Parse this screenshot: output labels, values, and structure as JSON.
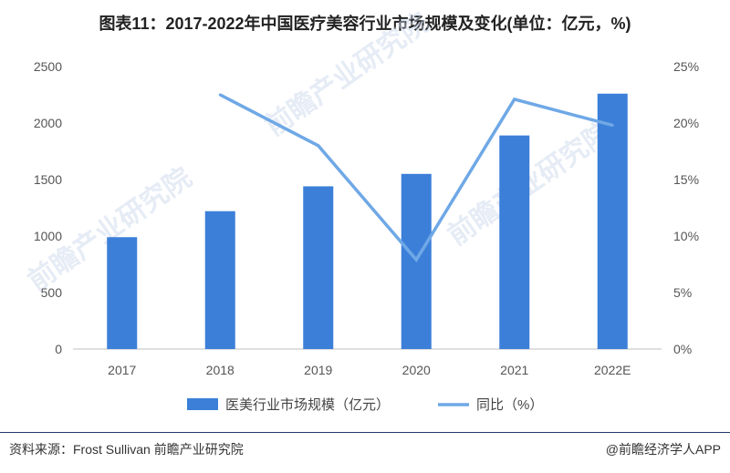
{
  "title": "图表11：2017-2022年中国医疗美容行业市场规模及变化(单位：亿元，%)",
  "source": "资料来源：Frost Sullivan 前瞻产业研究院",
  "credit": "@前瞻经济学人APP",
  "watermark": "前瞻产业研究院",
  "colors": {
    "bar": "#3b7fd9",
    "line": "#6fa8e6",
    "axis": "#bfbfbf"
  },
  "chart_data": {
    "type": "bar",
    "categories": [
      "2017",
      "2018",
      "2019",
      "2020",
      "2021",
      "2022E"
    ],
    "series": [
      {
        "name": "医美行业市场规模（亿元）",
        "type": "bar",
        "axis": "left",
        "values": [
          990,
          1220,
          1440,
          1550,
          1890,
          2260
        ]
      },
      {
        "name": "同比（%）",
        "type": "line",
        "axis": "right",
        "values": [
          null,
          22.5,
          18.0,
          7.9,
          22.1,
          19.8
        ]
      }
    ],
    "yticks_left": [
      "0",
      "500",
      "1000",
      "1500",
      "2000",
      "2500"
    ],
    "yticks_right": [
      "0%",
      "5%",
      "10%",
      "15%",
      "20%",
      "25%"
    ],
    "ylim_left": [
      0,
      2500
    ],
    "ylim_right": [
      0,
      25
    ],
    "legend_position": "bottom",
    "grid": false
  }
}
